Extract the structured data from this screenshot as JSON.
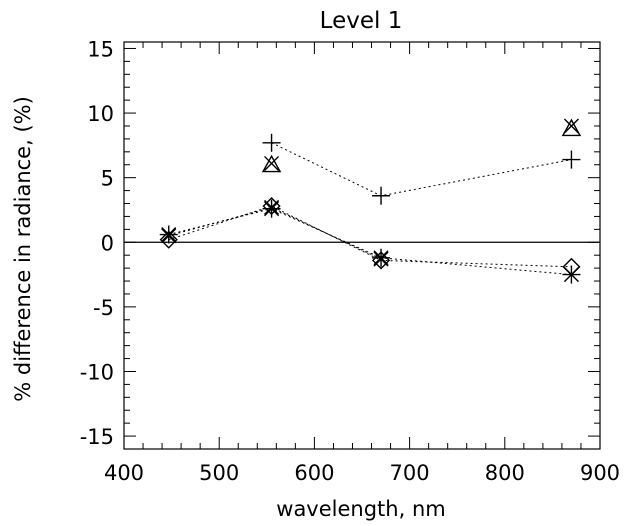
{
  "chart_data": {
    "type": "scatter",
    "title": "Level 1",
    "xlabel": "wavelength, nm",
    "ylabel": "% difference in radiance, (%)",
    "xlim": [
      400,
      900
    ],
    "ylim": [
      -16,
      15.5
    ],
    "xticks": [
      400,
      500,
      600,
      700,
      800,
      900
    ],
    "yticks": [
      -15,
      -10,
      -5,
      0,
      5,
      10,
      15
    ],
    "xtick_labels": [
      "400",
      "500",
      "600",
      "700",
      "800",
      "900"
    ],
    "ytick_labels": [
      "-15",
      "-10",
      "-5",
      "0",
      "5",
      "10",
      "15"
    ],
    "zero_line": true,
    "grid": false,
    "series": [
      {
        "marker": "plus",
        "x": [
          555,
          670,
          870
        ],
        "y": [
          7.7,
          3.6,
          6.4
        ],
        "connected": true
      },
      {
        "marker": "triangle",
        "x": [
          555,
          870
        ],
        "y": [
          6.0,
          8.8
        ],
        "connected": false
      },
      {
        "marker": "cross",
        "x": [
          555,
          870
        ],
        "y": [
          6.1,
          9.0
        ],
        "connected": false
      },
      {
        "marker": "diamond",
        "x": [
          447,
          555,
          670,
          870
        ],
        "y": [
          0.2,
          2.8,
          -1.4,
          -1.9
        ],
        "connected": true
      },
      {
        "marker": "asterisk",
        "x": [
          447,
          555,
          670,
          870
        ],
        "y": [
          0.6,
          2.6,
          -1.2,
          -2.5
        ],
        "connected": true
      },
      {
        "marker": "cross",
        "x": [
          447,
          555,
          670
        ],
        "y": [
          0.5,
          2.7,
          -1.3
        ],
        "connected": true
      }
    ]
  }
}
